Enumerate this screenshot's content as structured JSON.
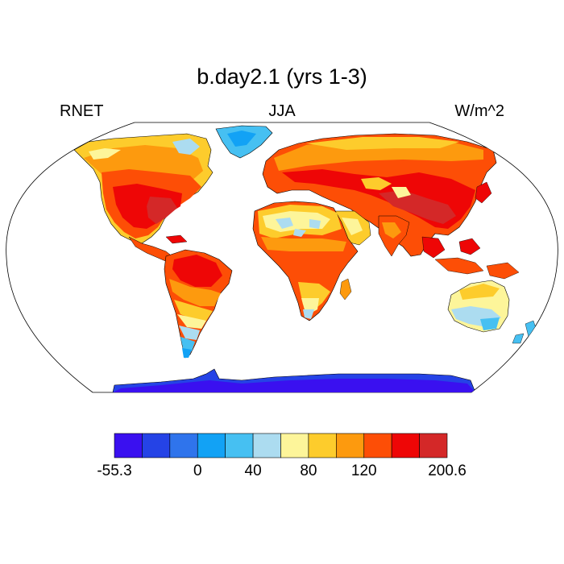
{
  "title": "b.day2.1 (yrs 1-3)",
  "left_string": "RNET",
  "center_string": "JJA",
  "right_string": "W/m^2",
  "projection": "Robinson",
  "colorbar": {
    "colors": [
      "#3a10f0",
      "#2543e6",
      "#2f74ec",
      "#12a2f5",
      "#46c0f2",
      "#acdcf0",
      "#fdf59a",
      "#fdcc2c",
      "#fd9a0e",
      "#fd4e06",
      "#ee0606",
      "#d42828"
    ],
    "labels": [
      {
        "text": "-55.3",
        "boundary": 0
      },
      {
        "text": "0",
        "boundary": 3
      },
      {
        "text": "40",
        "boundary": 5
      },
      {
        "text": "80",
        "boundary": 7
      },
      {
        "text": "120",
        "boundary": 9
      },
      {
        "text": "200.6",
        "boundary": 12
      }
    ]
  }
}
